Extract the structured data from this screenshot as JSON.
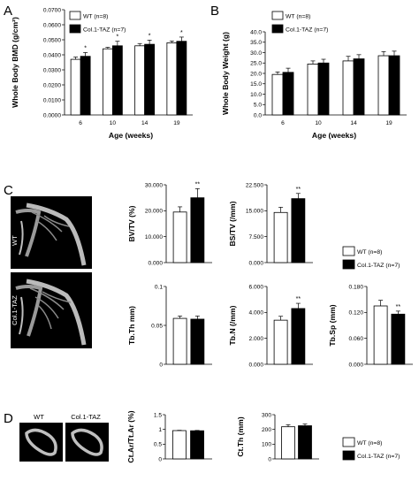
{
  "panels": {
    "A": "A",
    "B": "B",
    "C": "C",
    "D": "D"
  },
  "legend": {
    "wt": "WT (n=8)",
    "taz": "Col.1-TAZ (n=7)"
  },
  "colors": {
    "wt": "#ffffff",
    "taz": "#000000",
    "axis": "#000000"
  },
  "images": {
    "c_wt": "WT",
    "c_taz": "Col.1-TAZ",
    "d_wt": "WT",
    "d_taz": "Col.1-TAZ"
  },
  "chart_data": [
    {
      "id": "A",
      "type": "bar",
      "categories": [
        "6",
        "10",
        "14",
        "19"
      ],
      "xlabel": "Age (weeks)",
      "ylabel": "Whole Body BMD (g/cm²)",
      "ylim": [
        0,
        0.07
      ],
      "yticks": [
        "0.0000",
        "0.0100",
        "0.0200",
        "0.0300",
        "0.0400",
        "0.0500",
        "0.0600",
        "0.0700"
      ],
      "series": [
        {
          "name": "WT (n=8)",
          "values": [
            0.037,
            0.044,
            0.046,
            0.048
          ],
          "errors": [
            0.0015,
            0.001,
            0.0015,
            0.0012
          ]
        },
        {
          "name": "Col.1-TAZ (n=7)",
          "values": [
            0.039,
            0.046,
            0.047,
            0.049
          ],
          "errors": [
            0.0025,
            0.003,
            0.0028,
            0.0028
          ]
        }
      ],
      "annotations": [
        "*",
        "*",
        "*",
        "*"
      ],
      "legend_position": "top-left"
    },
    {
      "id": "B",
      "type": "bar",
      "categories": [
        "6",
        "10",
        "14",
        "19"
      ],
      "xlabel": "Age (weeks)",
      "ylabel": "Whole Body Weight (g)",
      "ylim": [
        0,
        40
      ],
      "yticks": [
        "0.0",
        "5.0",
        "10.0",
        "15.0",
        "20.0",
        "25.0",
        "30.0",
        "35.0",
        "40.0"
      ],
      "series": [
        {
          "name": "WT (n=8)",
          "values": [
            19.5,
            24.5,
            26.0,
            28.5
          ],
          "errors": [
            1.2,
            1.5,
            2.2,
            2.0
          ]
        },
        {
          "name": "Col.1-TAZ (n=7)",
          "values": [
            20.5,
            25.0,
            27.0,
            28.5
          ],
          "errors": [
            2.0,
            1.8,
            2.0,
            2.2
          ]
        }
      ],
      "legend_position": "top-left"
    },
    {
      "id": "C1",
      "type": "bar",
      "categories": [
        "WT",
        "Col.1-TAZ"
      ],
      "ylabel": "BV/TV (%)",
      "ylim": [
        0,
        30
      ],
      "yticks": [
        "0.000",
        "10.000",
        "20.000",
        "30.000"
      ],
      "values": [
        19.5,
        25.0
      ],
      "errors": [
        2.0,
        3.5
      ],
      "annotations": [
        "",
        "**"
      ]
    },
    {
      "id": "C2",
      "type": "bar",
      "categories": [
        "WT",
        "Col.1-TAZ"
      ],
      "ylabel": "BS/TV (/mm)",
      "ylim": [
        0,
        22.5
      ],
      "yticks": [
        "0.000",
        "7.500",
        "15.000",
        "22.500"
      ],
      "values": [
        14.5,
        18.5
      ],
      "errors": [
        1.5,
        1.5
      ],
      "annotations": [
        "",
        "**"
      ]
    },
    {
      "id": "C3",
      "type": "bar",
      "categories": [
        "WT",
        "Col.1-TAZ"
      ],
      "ylabel": "Tb.Th mm)",
      "ylim": [
        0,
        0.1
      ],
      "yticks": [
        "0",
        "0.05",
        "0.1"
      ],
      "values": [
        0.059,
        0.058
      ],
      "errors": [
        0.003,
        0.004
      ],
      "annotations": [
        "",
        ""
      ]
    },
    {
      "id": "C4",
      "type": "bar",
      "categories": [
        "WT",
        "Col.1-TAZ"
      ],
      "ylabel": "Tb.N (/mm)",
      "ylim": [
        0,
        6
      ],
      "yticks": [
        "0.000",
        "2.000",
        "4.000",
        "6.000"
      ],
      "values": [
        3.4,
        4.3
      ],
      "errors": [
        0.3,
        0.4
      ],
      "annotations": [
        "",
        "**"
      ]
    },
    {
      "id": "C5",
      "type": "bar",
      "categories": [
        "WT",
        "Col.1-TAZ"
      ],
      "ylabel": "Tb.Sp (mm)",
      "ylim": [
        0,
        0.18
      ],
      "yticks": [
        "0.000",
        "0.060",
        "0.120",
        "0.180"
      ],
      "values": [
        0.135,
        0.116
      ],
      "errors": [
        0.013,
        0.007
      ],
      "annotations": [
        "",
        "**"
      ]
    },
    {
      "id": "D1",
      "type": "bar",
      "categories": [
        "WT",
        "Col.1-TAZ"
      ],
      "ylabel": "Ct.Ar/Tt.Ar (%)",
      "ylim": [
        0,
        1.5
      ],
      "yticks": [
        "0",
        "0.5",
        "1",
        "1.5"
      ],
      "values": [
        0.96,
        0.955
      ],
      "errors": [
        0.01,
        0.012
      ],
      "annotations": [
        "",
        ""
      ]
    },
    {
      "id": "D2",
      "type": "bar",
      "categories": [
        "WT",
        "Col.1-TAZ"
      ],
      "ylabel": "Ct.Th (mm)",
      "ylim": [
        0,
        300
      ],
      "yticks": [
        "0",
        "100",
        "200",
        "300"
      ],
      "values": [
        218,
        225
      ],
      "errors": [
        14,
        12
      ],
      "annotations": [
        "",
        ""
      ]
    }
  ]
}
